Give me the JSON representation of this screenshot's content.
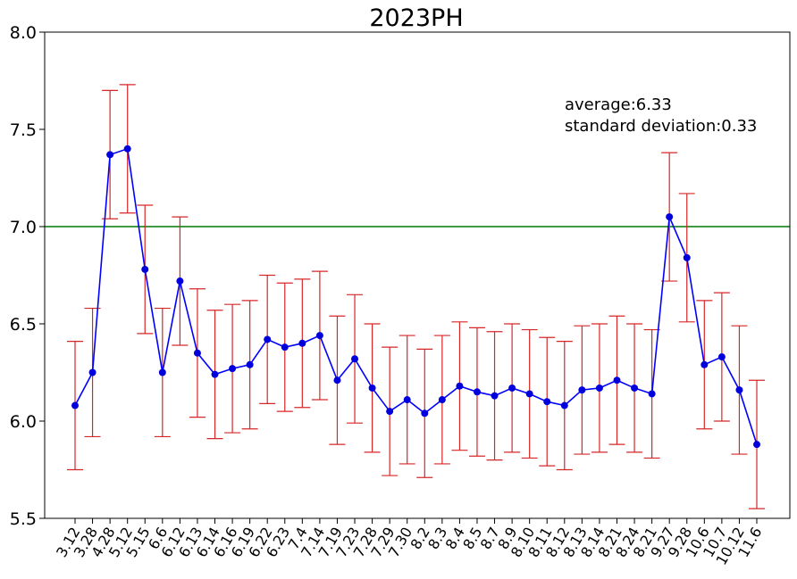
{
  "chart_data": {
    "type": "line",
    "title": "2023PH",
    "xlabel": "",
    "ylabel": "",
    "ylim": [
      5.5,
      8.0
    ],
    "yticks": [
      5.5,
      6.0,
      6.5,
      7.0,
      7.5,
      8.0
    ],
    "ytick_labels": [
      "5.5",
      "6.0",
      "6.5",
      "7.0",
      "7.5",
      "8.0"
    ],
    "grid": false,
    "categories": [
      "3.12",
      "3.28",
      "4.28",
      "5.12",
      "5.15",
      "6.6",
      "6.12",
      "6.13",
      "6.14",
      "6.16",
      "6.19",
      "6.22",
      "6.23",
      "7.4",
      "7.14",
      "7.19",
      "7.23",
      "7.28",
      "7.29",
      "7.30",
      "8.2",
      "8.3",
      "8.4",
      "8.5",
      "8.7",
      "8.9",
      "8.10",
      "8.11",
      "8.12",
      "8.13",
      "8.14",
      "8.21",
      "8.24",
      "8.21",
      "9.27",
      "9.28",
      "10.6",
      "10.7",
      "10.12",
      "11.6"
    ],
    "series": [
      {
        "values": [
          6.08,
          6.25,
          7.37,
          7.4,
          6.78,
          6.25,
          6.72,
          6.35,
          6.24,
          6.27,
          6.29,
          6.42,
          6.38,
          6.4,
          6.44,
          6.21,
          6.32,
          6.17,
          6.05,
          6.11,
          6.04,
          6.11,
          6.18,
          6.15,
          6.13,
          6.17,
          6.14,
          6.1,
          6.08,
          6.16,
          6.17,
          6.21,
          6.17,
          6.14,
          7.05,
          6.84,
          6.29,
          6.33,
          6.16,
          5.88
        ],
        "error": 0.33,
        "line_color": "#0000ff",
        "marker_color": "#0000dd",
        "error_color": "#d62728"
      }
    ],
    "reference_line": {
      "y": 7.0,
      "color": "#007a00"
    },
    "annotations": [
      "average:6.33",
      "standard deviation:0.33"
    ]
  }
}
